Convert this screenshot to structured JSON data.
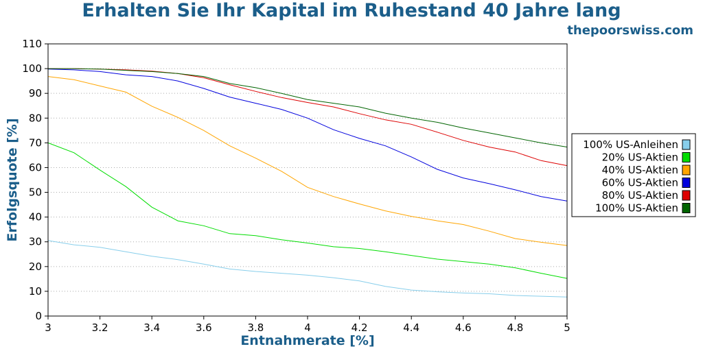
{
  "header": {
    "title": "Erhalten Sie Ihr Kapital im Ruhestand 40 Jahre lang",
    "site": "thepoorswiss.com"
  },
  "chart_data": {
    "type": "line",
    "title": "Erhalten Sie Ihr Kapital im Ruhestand 40 Jahre lang",
    "xlabel": "Entnahmerate [%]",
    "ylabel": "Erfolgsquote [%]",
    "xlim": [
      3,
      5
    ],
    "ylim": [
      0,
      110
    ],
    "xticks": [
      "3",
      "3.2",
      "3.4",
      "3.6",
      "3.8",
      "4",
      "4.2",
      "4.4",
      "4.6",
      "4.8",
      "5"
    ],
    "xtick_values": [
      3,
      3.2,
      3.4,
      3.6,
      3.8,
      4,
      4.2,
      4.4,
      4.6,
      4.8,
      5
    ],
    "yticks": [
      "0",
      "10",
      "20",
      "30",
      "40",
      "50",
      "60",
      "70",
      "80",
      "90",
      "100",
      "110"
    ],
    "ytick_values": [
      0,
      10,
      20,
      30,
      40,
      50,
      60,
      70,
      80,
      90,
      100,
      110
    ],
    "grid": "horizontal dotted",
    "legend_position": "right",
    "x": [
      3.0,
      3.1,
      3.2,
      3.3,
      3.4,
      3.5,
      3.6,
      3.7,
      3.8,
      3.9,
      4.0,
      4.1,
      4.2,
      4.3,
      4.4,
      4.5,
      4.6,
      4.7,
      4.8,
      4.9,
      5.0
    ],
    "series": [
      {
        "name": "100% US-Anleihen",
        "color": "#87ceeb",
        "values": [
          30.5,
          28.8,
          27.8,
          26.0,
          24.2,
          22.8,
          21.0,
          19.0,
          18.0,
          17.3,
          16.5,
          15.5,
          14.2,
          12.0,
          10.5,
          9.8,
          9.3,
          9.0,
          8.3,
          8.0,
          7.7
        ]
      },
      {
        "name": "20% US-Aktien",
        "color": "#00dd00",
        "values": [
          70.0,
          66.0,
          59.0,
          52.3,
          44.0,
          38.5,
          36.5,
          33.3,
          32.5,
          30.8,
          29.5,
          28.0,
          27.3,
          26.0,
          24.5,
          23.0,
          22.0,
          21.0,
          19.5,
          17.3,
          15.2
        ]
      },
      {
        "name": "40% US-Aktien",
        "color": "#ffa500",
        "values": [
          96.8,
          95.5,
          93.0,
          90.5,
          84.8,
          80.3,
          75.0,
          68.8,
          63.8,
          58.5,
          52.0,
          48.3,
          45.3,
          42.5,
          40.3,
          38.5,
          37.0,
          34.3,
          31.3,
          29.8,
          28.5
        ]
      },
      {
        "name": "60% US-Aktien",
        "color": "#0000dd",
        "values": [
          99.8,
          99.5,
          98.8,
          97.5,
          96.8,
          95.0,
          92.0,
          88.5,
          86.0,
          83.5,
          80.0,
          75.3,
          71.8,
          68.8,
          64.3,
          59.3,
          55.8,
          53.5,
          51.0,
          48.3,
          46.5
        ]
      },
      {
        "name": "80% US-Aktien",
        "color": "#dd0000",
        "values": [
          100.0,
          100.0,
          99.8,
          99.5,
          99.0,
          98.0,
          96.3,
          93.5,
          90.8,
          88.3,
          86.3,
          84.5,
          81.8,
          79.3,
          77.5,
          74.3,
          71.0,
          68.3,
          66.3,
          62.8,
          60.8
        ]
      },
      {
        "name": "100% US-Aktien",
        "color": "#006400",
        "values": [
          100.0,
          100.0,
          99.8,
          99.3,
          98.8,
          98.0,
          96.8,
          94.0,
          92.3,
          90.0,
          87.5,
          86.0,
          84.5,
          82.0,
          80.0,
          78.3,
          76.0,
          74.0,
          72.0,
          70.0,
          68.3
        ]
      }
    ]
  }
}
